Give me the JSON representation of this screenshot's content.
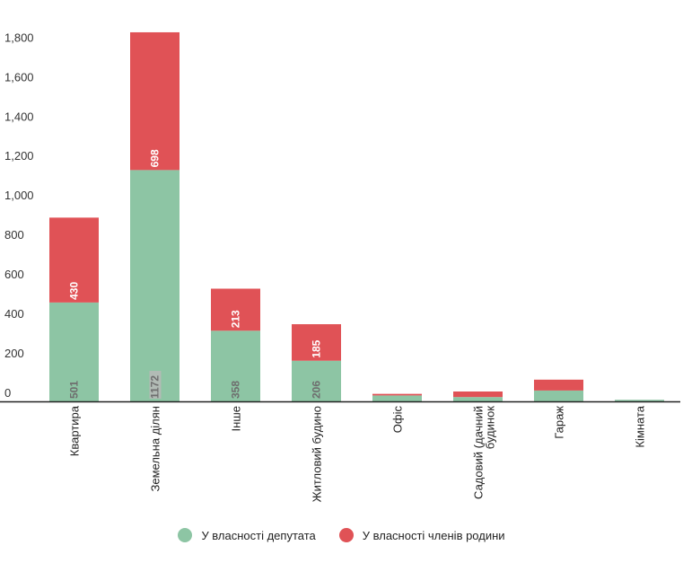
{
  "chart_data": {
    "type": "bar",
    "stacked": true,
    "categories": [
      "Квартира",
      "Земельна ділянка",
      "Інше",
      "Житловий будинок",
      "Офіс",
      "Садовий (дачний) будинок",
      "Гараж",
      "Кімната"
    ],
    "category_display": [
      "Квартира",
      "Земельна ділян",
      "Інше",
      "Житловий будино",
      "Офіс",
      "Садовий (дачний|будинок",
      "Гараж",
      "Кімната"
    ],
    "series": [
      {
        "name": "У власності депутата",
        "color": "#8dc5a4",
        "values": [
          501,
          1172,
          358,
          206,
          30,
          22,
          55,
          8
        ],
        "labels": [
          "501",
          "1172",
          "358",
          "206",
          "",
          "",
          "",
          ""
        ]
      },
      {
        "name": "У власності членів родини",
        "color": "#e05256",
        "values": [
          430,
          698,
          213,
          185,
          8,
          28,
          55,
          0
        ],
        "labels": [
          "430",
          "698",
          "213",
          "185",
          "",
          "",
          "",
          ""
        ]
      }
    ],
    "yticks": [
      0,
      200,
      400,
      600,
      800,
      1000,
      1200,
      1400,
      1600,
      1800
    ],
    "ytick_labels": [
      "0",
      "200",
      "400",
      "600",
      "800",
      "1,000",
      "1,200",
      "1,400",
      "1,600",
      "1,800"
    ],
    "ylim": [
      0,
      1870
    ],
    "grid": false,
    "legend_position": "bottom"
  }
}
